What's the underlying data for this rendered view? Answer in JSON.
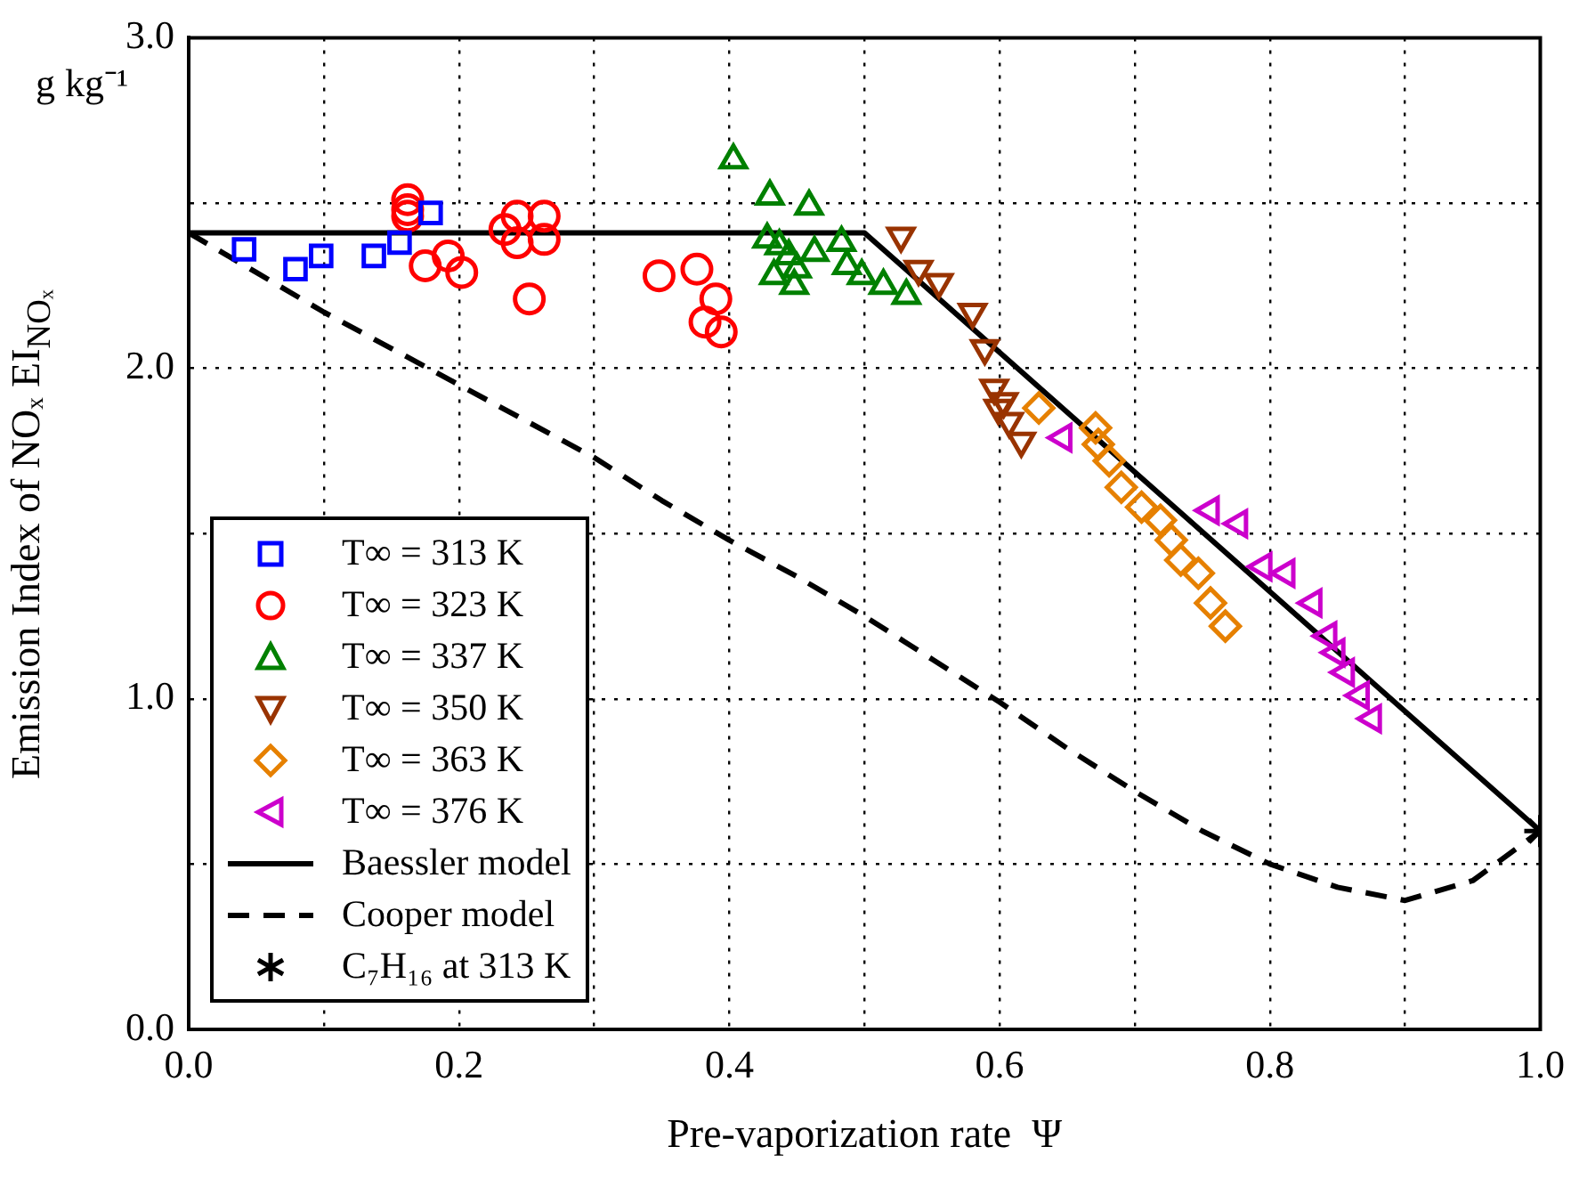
{
  "chart_data": {
    "type": "scatter",
    "xlabel": "Pre-vaporization rate  Ψ",
    "ylabel": "Emission Index of NOₓ  EI$_{NOₓ}$",
    "annotations": [
      "g kg⁻¹"
    ],
    "xlim": [
      0,
      1
    ],
    "xticks": [
      {
        "value": 0,
        "label": "0.0"
      },
      {
        "value": 0.1,
        "label": null
      },
      {
        "value": 0.2,
        "label": "0.2"
      },
      {
        "value": 0.3,
        "label": null
      },
      {
        "value": 0.4,
        "label": "0.4"
      },
      {
        "value": 0.5,
        "label": null
      },
      {
        "value": 0.6,
        "label": "0.6"
      },
      {
        "value": 0.7,
        "label": null
      },
      {
        "value": 0.8,
        "label": "0.8"
      },
      {
        "value": 0.9,
        "label": null
      },
      {
        "value": 1,
        "label": "1.0"
      }
    ],
    "ylim": [
      0,
      3
    ],
    "yticks": [
      {
        "value": 0,
        "label": "0.0"
      },
      {
        "value": 0.5,
        "label": null
      },
      {
        "value": 1,
        "label": "1.0"
      },
      {
        "value": 1.5,
        "label": null
      },
      {
        "value": 2,
        "label": "2.0"
      },
      {
        "value": 2.5,
        "label": null
      },
      {
        "value": 3,
        "label": "3.0"
      }
    ],
    "grid": true,
    "legend": "bottom left",
    "series": [
      {
        "name": "T∞ = 313 K",
        "color": "#0000ff",
        "marker": "square",
        "x": [
          0.041,
          0.079,
          0.098,
          0.137,
          0.156,
          0.179
        ],
        "values": [
          2.36,
          2.3,
          2.34,
          2.34,
          2.38,
          2.47
        ]
      },
      {
        "name": "T∞ = 323 K",
        "color": "#ff0000",
        "marker": "circle",
        "x": [
          0.162,
          0.162,
          0.162,
          0.175,
          0.192,
          0.202,
          0.234,
          0.243,
          0.243,
          0.263,
          0.263,
          0.252,
          0.348,
          0.376,
          0.39,
          0.382,
          0.394
        ],
        "values": [
          2.51,
          2.48,
          2.46,
          2.31,
          2.34,
          2.29,
          2.42,
          2.46,
          2.38,
          2.46,
          2.39,
          2.21,
          2.28,
          2.3,
          2.21,
          2.14,
          2.11
        ]
      },
      {
        "name": "T∞ = 337 K",
        "color": "#008000",
        "marker": "triangle",
        "x": [
          0.403,
          0.43,
          0.459,
          0.428,
          0.437,
          0.444,
          0.45,
          0.448,
          0.463,
          0.483,
          0.487,
          0.498,
          0.514,
          0.531,
          0.433
        ],
        "values": [
          2.63,
          2.52,
          2.49,
          2.39,
          2.37,
          2.34,
          2.3,
          2.25,
          2.35,
          2.38,
          2.31,
          2.28,
          2.25,
          2.22,
          2.28
        ]
      },
      {
        "name": "T∞ = 350 K",
        "color": "#993300",
        "marker": "triangle-down",
        "x": [
          0.527,
          0.54,
          0.555,
          0.58,
          0.589,
          0.596,
          0.603,
          0.599,
          0.607,
          0.616
        ],
        "values": [
          2.4,
          2.3,
          2.26,
          2.17,
          2.06,
          1.94,
          1.9,
          1.88,
          1.84,
          1.78
        ]
      },
      {
        "name": "T∞ = 363 K",
        "color": "#e68000",
        "marker": "diamond",
        "x": [
          0.629,
          0.671,
          0.673,
          0.681,
          0.69,
          0.705,
          0.719,
          0.727,
          0.734,
          0.747,
          0.756,
          0.767
        ],
        "values": [
          1.88,
          1.82,
          1.77,
          1.72,
          1.64,
          1.58,
          1.54,
          1.48,
          1.42,
          1.38,
          1.29,
          1.22
        ]
      },
      {
        "name": "T∞ = 376 K",
        "color": "#cc00cc",
        "marker": "triangle-left",
        "x": [
          0.647,
          0.756,
          0.777,
          0.795,
          0.812,
          0.832,
          0.843,
          0.849,
          0.856,
          0.867,
          0.876
        ],
        "values": [
          1.79,
          1.57,
          1.53,
          1.4,
          1.38,
          1.29,
          1.19,
          1.14,
          1.08,
          1.01,
          0.94
        ]
      },
      {
        "name": "Baessler model",
        "type": "line",
        "color": "#000000",
        "marker": "none",
        "line_style": "solid",
        "x": [
          0,
          0.5,
          1
        ],
        "values": [
          2.41,
          2.41,
          0.6
        ]
      },
      {
        "name": "Cooper model",
        "type": "line",
        "color": "#000000",
        "marker": "none",
        "line_style": "dashed",
        "x": [
          0,
          0.05,
          0.1,
          0.15,
          0.2,
          0.25,
          0.3,
          0.35,
          0.4,
          0.45,
          0.5,
          0.55,
          0.6,
          0.65,
          0.7,
          0.75,
          0.8,
          0.85,
          0.9,
          0.95,
          1
        ],
        "values": [
          2.41,
          2.29,
          2.17,
          2.06,
          1.95,
          1.84,
          1.73,
          1.6,
          1.48,
          1.37,
          1.25,
          1.12,
          0.99,
          0.85,
          0.72,
          0.6,
          0.5,
          0.43,
          0.39,
          0.45,
          0.6
        ]
      },
      {
        "name": "C₇H₁₆ at 313 K",
        "color": "#000000",
        "marker": "cross",
        "x": [
          1
        ],
        "values": [
          0.6
        ]
      }
    ]
  }
}
